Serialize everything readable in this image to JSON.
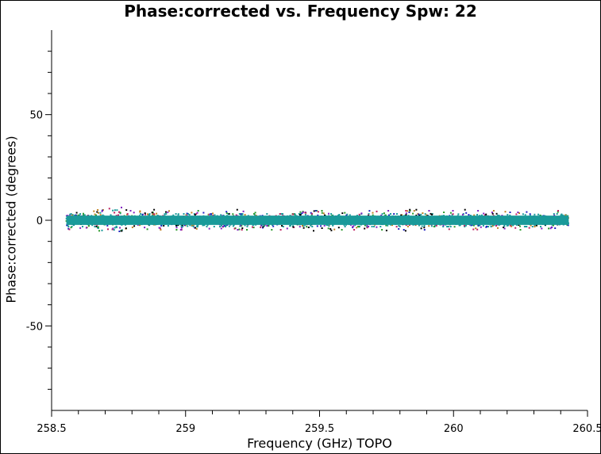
{
  "chart_data": {
    "type": "scatter",
    "title": "Phase:corrected vs. Frequency Spw: 22",
    "xlabel": "Frequency (GHz) TOPO",
    "ylabel": "Phase:corrected (degrees)",
    "xlim": [
      258.5,
      260.5
    ],
    "ylim": [
      -90,
      90
    ],
    "x_ticks": [
      258.5,
      259,
      259.5,
      260,
      260.5
    ],
    "x_tick_labels": [
      "258.5",
      "259",
      "259.5",
      "260",
      "260.5"
    ],
    "y_ticks": [
      -50,
      0,
      50
    ],
    "y_tick_labels": [
      "-50",
      "0",
      "50"
    ],
    "x_minor_step": 0.1,
    "y_minor_step": 10,
    "grid": false,
    "legend": "none",
    "series": [
      {
        "color": "#1a9a9a",
        "x_range": [
          258.555,
          260.43
        ],
        "y_center": 0,
        "spread": 3
      },
      {
        "color": "#c08020",
        "x_range": [
          258.555,
          260.43
        ],
        "y_center": 0,
        "spread": 4.5
      },
      {
        "color": "#2a9a2a",
        "x_range": [
          258.555,
          260.43
        ],
        "y_center": 0,
        "spread": 4.5
      },
      {
        "color": "#2020c0",
        "x_range": [
          258.555,
          260.43
        ],
        "y_center": 0,
        "spread": 4.5
      },
      {
        "color": "#c02060",
        "x_range": [
          258.555,
          260.43
        ],
        "y_center": 0,
        "spread": 4.5
      },
      {
        "color": "#8020c0",
        "x_range": [
          258.555,
          260.43
        ],
        "y_center": 0,
        "spread": 4.5
      },
      {
        "color": "#000000",
        "x_range": [
          258.555,
          260.43
        ],
        "y_center": 0,
        "spread": 5
      }
    ],
    "feature": {
      "x_center": 258.72,
      "x_halfwidth": 0.05,
      "spread": 8
    }
  }
}
